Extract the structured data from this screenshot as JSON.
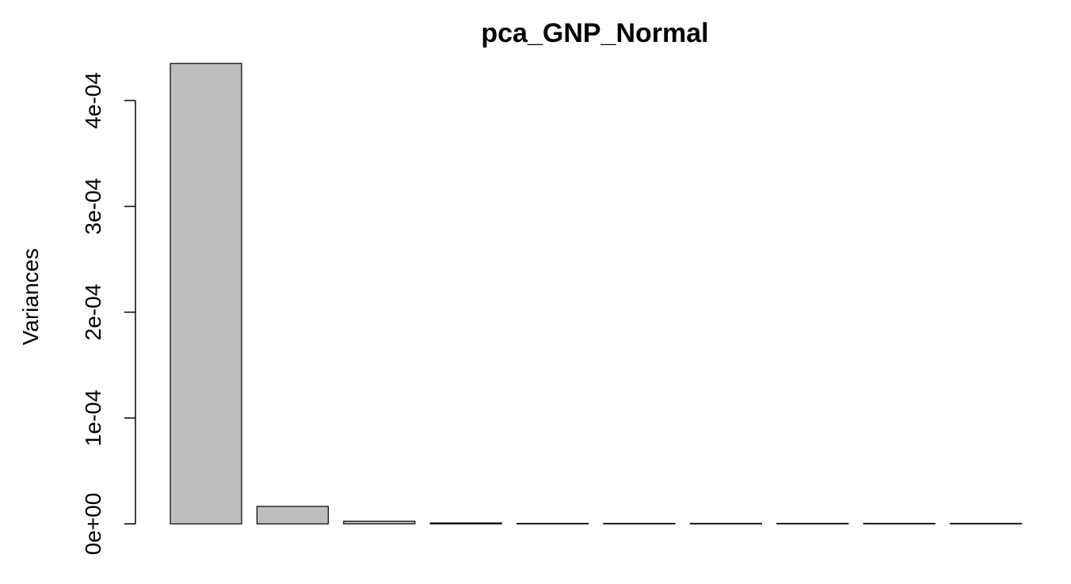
{
  "chart_data": {
    "type": "bar",
    "title": "pca_GNP_Normal",
    "xlabel": "",
    "ylabel": "Variances",
    "categories": [
      "",
      "",
      "",
      "",
      "",
      "",
      "",
      "",
      "",
      ""
    ],
    "values": [
      0.000435,
      1.65e-05,
      2.5e-06,
      8e-07,
      3e-07,
      2e-07,
      1e-07,
      1e-07,
      5e-08,
      3e-08
    ],
    "ylim": [
      0,
      0.0004
    ],
    "yticks": [
      0,
      0.0001,
      0.0002,
      0.0003,
      0.0004
    ],
    "ytick_labels": [
      "0e+00",
      "1e-04",
      "2e-04",
      "3e-04",
      "4e-04"
    ],
    "bar_color": "#bebebe",
    "grid": false,
    "legend": "none"
  }
}
